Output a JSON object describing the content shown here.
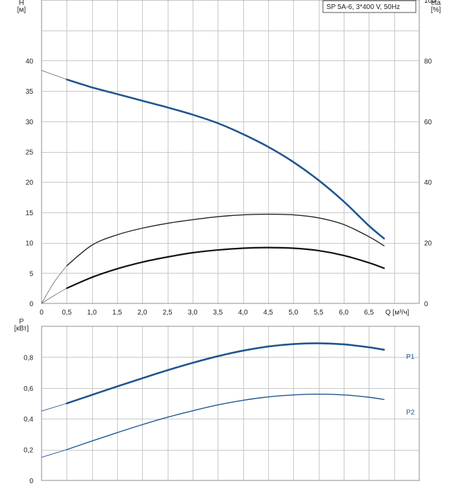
{
  "chart_data": [
    {
      "type": "line",
      "title": "SP 5A-6, 3*400 V, 50Hz",
      "xlabel": "Q [м³/ч]",
      "ylabel": "H\n[м]",
      "ylabel_right": "eta\n[%]",
      "xlim": [
        0,
        7.5
      ],
      "ylim": [
        0,
        50
      ],
      "ylim_right": [
        0,
        100
      ],
      "x_ticks": [
        "0",
        "0,5",
        "1,0",
        "1,5",
        "2,0",
        "2,5",
        "3,0",
        "3,5",
        "4,0",
        "4,5",
        "5,0",
        "5,5",
        "6,0",
        "6,5"
      ],
      "y_ticks": [
        "0",
        "5",
        "10",
        "15",
        "20",
        "25",
        "30",
        "35",
        "40"
      ],
      "y_ticks_right": [
        "0",
        "20",
        "40",
        "60",
        "80",
        "100"
      ],
      "grid": true,
      "series": [
        {
          "axis": "left",
          "color": "#1f5590",
          "width": 2.6,
          "x": [
            0.5,
            1.0,
            1.5,
            2.0,
            2.5,
            3.0,
            3.5,
            4.0,
            4.5,
            5.0,
            5.5,
            6.0,
            6.5,
            6.8
          ],
          "values": [
            36.9,
            35.6,
            34.5,
            33.4,
            32.3,
            31.1,
            29.7,
            27.9,
            25.8,
            23.3,
            20.3,
            16.8,
            12.8,
            10.7
          ]
        },
        {
          "axis": "left",
          "color": "#222222",
          "width": 1.4,
          "x": [
            0.5,
            1.0,
            1.5,
            2.0,
            2.5,
            3.0,
            3.5,
            4.0,
            4.5,
            5.0,
            5.5,
            6.0,
            6.5,
            6.8
          ],
          "values": [
            6.2,
            9.6,
            11.3,
            12.4,
            13.2,
            13.8,
            14.3,
            14.6,
            14.7,
            14.6,
            14.1,
            13.0,
            11.0,
            9.5
          ]
        },
        {
          "axis": "right",
          "color": "#111111",
          "width": 2.2,
          "x": [
            0.5,
            1.0,
            1.5,
            2.0,
            2.5,
            3.0,
            3.5,
            4.0,
            4.5,
            5.0,
            5.5,
            6.0,
            6.5,
            6.8
          ],
          "values": [
            5,
            8.6,
            11.4,
            13.6,
            15.3,
            16.7,
            17.6,
            18.2,
            18.4,
            18.2,
            17.4,
            15.8,
            13.4,
            11.6
          ]
        },
        {
          "axis": "left",
          "color": "#666666",
          "width": 0.8,
          "x": [
            0,
            0.5
          ],
          "values": [
            38.4,
            36.9
          ]
        },
        {
          "axis": "left",
          "color": "#666666",
          "width": 0.8,
          "x": [
            0,
            0.25,
            0.5
          ],
          "values": [
            0,
            3.5,
            6.2
          ]
        },
        {
          "axis": "right",
          "color": "#666666",
          "width": 0.8,
          "x": [
            0,
            0.25,
            0.5
          ],
          "values": [
            0,
            2.6,
            5
          ]
        }
      ]
    },
    {
      "type": "line",
      "xlabel": "",
      "ylabel": "P\n[кВт]",
      "xlim": [
        0,
        7.5
      ],
      "ylim": [
        0,
        1.0
      ],
      "y_ticks": [
        "0",
        "0,2",
        "0,4",
        "0,6",
        "0,8"
      ],
      "grid": true,
      "series": [
        {
          "name": "P1",
          "color": "#1f5590",
          "width": 2.6,
          "x": [
            0.5,
            1.0,
            1.5,
            2.0,
            2.5,
            3.0,
            3.5,
            4.0,
            4.5,
            5.0,
            5.5,
            6.0,
            6.5,
            6.8
          ],
          "values": [
            0.5,
            0.555,
            0.61,
            0.663,
            0.715,
            0.763,
            0.806,
            0.842,
            0.869,
            0.885,
            0.89,
            0.883,
            0.864,
            0.848
          ]
        },
        {
          "name": "P2",
          "color": "#1f5590",
          "width": 1.4,
          "x": [
            0.5,
            1.0,
            1.5,
            2.0,
            2.5,
            3.0,
            3.5,
            4.0,
            4.5,
            5.0,
            5.5,
            6.0,
            6.5,
            6.8
          ],
          "values": [
            0.2,
            0.256,
            0.31,
            0.362,
            0.41,
            0.452,
            0.49,
            0.52,
            0.542,
            0.555,
            0.56,
            0.555,
            0.54,
            0.525
          ]
        },
        {
          "color": "#1f5590",
          "width": 0.9,
          "x": [
            0,
            0.5
          ],
          "values": [
            0.45,
            0.5
          ]
        },
        {
          "color": "#1f5590",
          "width": 0.9,
          "x": [
            0,
            0.5
          ],
          "values": [
            0.15,
            0.2
          ]
        }
      ]
    }
  ]
}
